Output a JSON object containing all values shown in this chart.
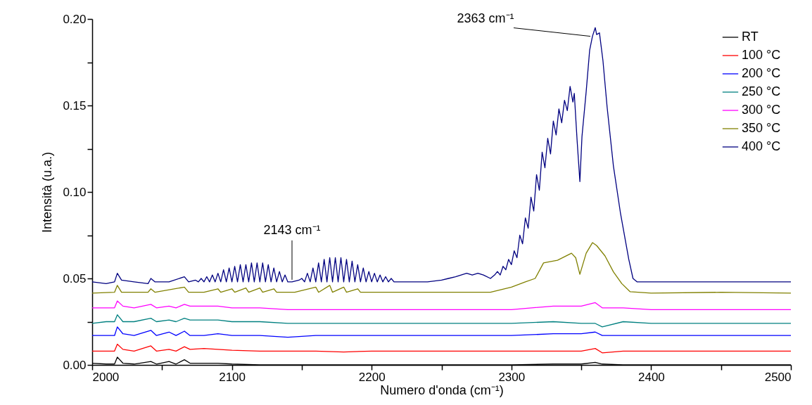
{
  "chart_data": {
    "type": "line",
    "xlabel": "Numero d'onda (cm⁻¹)",
    "ylabel": "Intensità (u.a.)",
    "legend": "top right",
    "grid": false,
    "xlim": [
      2000,
      2500
    ],
    "xticks": [
      2000,
      {
        "value": 2050,
        "label": null
      },
      2100,
      {
        "value": 2150,
        "label": null
      },
      2200,
      {
        "value": 2250,
        "label": null
      },
      2300,
      {
        "value": 2350,
        "label": null
      },
      2400,
      {
        "value": 2450,
        "label": null
      },
      2500
    ],
    "ylim": [
      0,
      0.2
    ],
    "yticks": [
      {
        "value": 0,
        "label": "0.00"
      },
      {
        "value": 0.025,
        "label": null
      },
      {
        "value": 0.05,
        "label": "0.05"
      },
      {
        "value": 0.075,
        "label": null
      },
      {
        "value": 0.1,
        "label": "0.10"
      },
      {
        "value": 0.125,
        "label": null
      },
      {
        "value": 0.15,
        "label": "0.15"
      },
      {
        "value": 0.175,
        "label": null
      },
      {
        "value": 0.2,
        "label": "0.20"
      }
    ],
    "annotations": [
      {
        "text": "2143 cm⁻¹",
        "x": 2143,
        "y": 0.048
      },
      {
        "text": "2363 cm⁻¹",
        "x": 2358,
        "y": 0.19
      }
    ],
    "x": [
      2000,
      2010,
      2016,
      2018,
      2022,
      2030,
      2042,
      2046,
      2055,
      2060,
      2066,
      2070,
      2080,
      2090,
      2100,
      2120,
      2140,
      2160,
      2180,
      2200,
      2250,
      2300,
      2330,
      2350,
      2360,
      2365,
      2380,
      2400,
      2450,
      2500
    ],
    "series": [
      {
        "name": "RT",
        "color": "#000000",
        "values": [
          0.001,
          0.0005,
          0.0005,
          0.0045,
          0.001,
          0.0005,
          0.002,
          0.0005,
          0.002,
          0.0005,
          0.003,
          0.001,
          0.001,
          0.001,
          0.0005,
          0,
          0,
          0,
          0,
          0,
          0,
          0,
          0.0005,
          0.0005,
          0.0015,
          0.0005,
          0,
          0,
          0,
          0
        ]
      },
      {
        "name": "100 °C",
        "color": "#ff0000",
        "values": [
          0.008,
          0.008,
          0.008,
          0.012,
          0.009,
          0.008,
          0.011,
          0.008,
          0.009,
          0.008,
          0.0105,
          0.009,
          0.0095,
          0.009,
          0.0085,
          0.008,
          0.008,
          0.008,
          0.0075,
          0.008,
          0.008,
          0.008,
          0.008,
          0.008,
          0.0095,
          0.007,
          0.008,
          0.008,
          0.008,
          0.008
        ]
      },
      {
        "name": "200 °C",
        "color": "#0000ff",
        "values": [
          0.017,
          0.017,
          0.017,
          0.022,
          0.018,
          0.017,
          0.02,
          0.017,
          0.019,
          0.017,
          0.0195,
          0.017,
          0.017,
          0.018,
          0.017,
          0.017,
          0.016,
          0.017,
          0.017,
          0.017,
          0.017,
          0.017,
          0.018,
          0.018,
          0.019,
          0.017,
          0.017,
          0.017,
          0.017,
          0.017
        ]
      },
      {
        "name": "250 °C",
        "color": "#008080",
        "values": [
          0.024,
          0.025,
          0.025,
          0.029,
          0.025,
          0.025,
          0.027,
          0.025,
          0.026,
          0.025,
          0.027,
          0.026,
          0.026,
          0.026,
          0.025,
          0.025,
          0.024,
          0.024,
          0.024,
          0.024,
          0.024,
          0.024,
          0.025,
          0.024,
          0.024,
          0.022,
          0.025,
          0.024,
          0.024,
          0.024
        ]
      },
      {
        "name": "300 °C",
        "color": "#ff00ff",
        "values": [
          0.033,
          0.033,
          0.033,
          0.037,
          0.034,
          0.033,
          0.035,
          0.033,
          0.034,
          0.033,
          0.035,
          0.034,
          0.034,
          0.034,
          0.033,
          0.033,
          0.032,
          0.032,
          0.032,
          0.032,
          0.032,
          0.032,
          0.034,
          0.034,
          0.036,
          0.033,
          0.033,
          0.032,
          0.032,
          0.032
        ]
      },
      {
        "name": "350 °C",
        "color": "#808000",
        "x": [
          2000,
          2016,
          2018,
          2021,
          2040,
          2042,
          2045,
          2066,
          2069,
          2080,
          2090,
          2092,
          2100,
          2102,
          2110,
          2112,
          2120,
          2122,
          2130,
          2132,
          2145,
          2160,
          2162,
          2170,
          2172,
          2180,
          2182,
          2190,
          2192,
          2210,
          2250,
          2285,
          2300,
          2310,
          2317,
          2323,
          2333,
          2343,
          2346,
          2349,
          2353.5,
          2358,
          2361,
          2367,
          2373,
          2379,
          2385,
          2400,
          2450,
          2500
        ],
        "values": [
          0.0415,
          0.042,
          0.046,
          0.042,
          0.042,
          0.044,
          0.042,
          0.045,
          0.042,
          0.042,
          0.044,
          0.042,
          0.044,
          0.042,
          0.0445,
          0.042,
          0.0445,
          0.042,
          0.044,
          0.042,
          0.042,
          0.045,
          0.042,
          0.046,
          0.042,
          0.045,
          0.042,
          0.044,
          0.042,
          0.042,
          0.042,
          0.042,
          0.045,
          0.048,
          0.05,
          0.059,
          0.0605,
          0.0646,
          0.062,
          0.0524,
          0.0646,
          0.0707,
          0.069,
          0.063,
          0.0538,
          0.047,
          0.0423,
          0.0415,
          0.042,
          0.0415
        ]
      },
      {
        "name": "400 °C",
        "color": "#000080",
        "x": [
          2000,
          2010,
          2016,
          2018,
          2021,
          2030,
          2040,
          2042,
          2045,
          2055,
          2066,
          2069,
          2074,
          2076,
          2078,
          2080,
          2082,
          2084,
          2086,
          2088,
          2090,
          2092,
          2094,
          2096,
          2098,
          2100,
          2102,
          2104,
          2106,
          2108,
          2110,
          2112,
          2114,
          2116,
          2118,
          2120,
          2122,
          2124,
          2126,
          2128,
          2130,
          2132,
          2134,
          2136,
          2138,
          2140,
          2143,
          2148,
          2150,
          2152,
          2154,
          2156,
          2158,
          2160,
          2162,
          2164,
          2166,
          2168,
          2170,
          2172,
          2174,
          2176,
          2178,
          2180,
          2182,
          2184,
          2186,
          2188,
          2190,
          2192,
          2194,
          2196,
          2198,
          2200,
          2202,
          2204,
          2206,
          2208,
          2210,
          2212,
          2214,
          2216,
          2225,
          2240,
          2250,
          2255,
          2260,
          2264,
          2268,
          2272,
          2276,
          2280,
          2285,
          2288,
          2290,
          2292,
          2294,
          2296,
          2298,
          2300,
          2302,
          2304,
          2306,
          2308,
          2310,
          2312,
          2314,
          2316,
          2318,
          2320,
          2322,
          2324,
          2326,
          2328,
          2330,
          2332,
          2334,
          2336,
          2338,
          2340,
          2342,
          2344,
          2345,
          2347,
          2349,
          2350.5,
          2353.5,
          2356,
          2358,
          2360,
          2361,
          2363,
          2365.5,
          2368.5,
          2373,
          2378,
          2384,
          2387,
          2390,
          2400,
          2420,
          2440,
          2460,
          2480,
          2500
        ],
        "values": [
          0.048,
          0.047,
          0.048,
          0.053,
          0.049,
          0.048,
          0.047,
          0.05,
          0.048,
          0.048,
          0.051,
          0.048,
          0.049,
          0.048,
          0.05,
          0.048,
          0.051,
          0.048,
          0.052,
          0.048,
          0.053,
          0.048,
          0.055,
          0.048,
          0.056,
          0.048,
          0.057,
          0.048,
          0.058,
          0.048,
          0.058,
          0.048,
          0.059,
          0.048,
          0.059,
          0.048,
          0.059,
          0.048,
          0.058,
          0.048,
          0.056,
          0.048,
          0.054,
          0.048,
          0.052,
          0.048,
          0.048,
          0.049,
          0.05,
          0.048,
          0.053,
          0.048,
          0.056,
          0.048,
          0.059,
          0.048,
          0.061,
          0.048,
          0.062,
          0.048,
          0.062,
          0.048,
          0.062,
          0.048,
          0.061,
          0.048,
          0.06,
          0.048,
          0.058,
          0.048,
          0.056,
          0.048,
          0.054,
          0.048,
          0.053,
          0.048,
          0.052,
          0.048,
          0.051,
          0.048,
          0.05,
          0.048,
          0.048,
          0.048,
          0.049,
          0.05,
          0.051,
          0.052,
          0.053,
          0.052,
          0.053,
          0.052,
          0.05,
          0.052,
          0.054,
          0.052,
          0.057,
          0.055,
          0.061,
          0.058,
          0.066,
          0.062,
          0.075,
          0.07,
          0.085,
          0.079,
          0.097,
          0.089,
          0.11,
          0.101,
          0.123,
          0.114,
          0.131,
          0.122,
          0.141,
          0.133,
          0.148,
          0.14,
          0.153,
          0.147,
          0.161,
          0.152,
          0.157,
          0.13,
          0.106,
          0.132,
          0.158,
          0.182,
          0.19,
          0.195,
          0.191,
          0.192,
          0.176,
          0.149,
          0.115,
          0.088,
          0.061,
          0.05,
          0.048,
          0.048,
          0.048,
          0.048,
          0.048,
          0.048,
          0.048
        ]
      }
    ]
  }
}
